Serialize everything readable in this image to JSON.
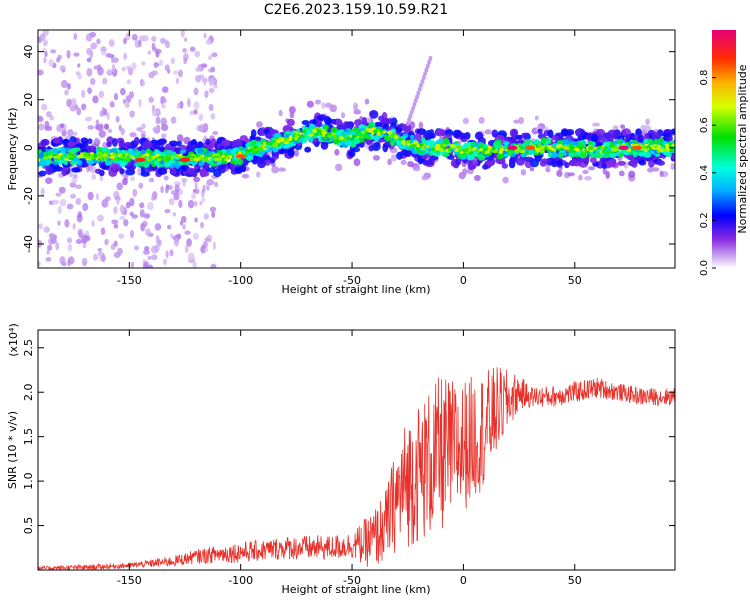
{
  "title": "C2E6.2023.159.10.59.R21",
  "chart_data": [
    {
      "type": "heatmap",
      "title": "C2E6.2023.159.10.59.R21",
      "xlabel": "Height of straight line (km)",
      "ylabel": "Frequency (Hz)",
      "xlim": [
        -191,
        95
      ],
      "ylim": [
        -50,
        49
      ],
      "xticks": [
        -150,
        -100,
        -50,
        0,
        50
      ],
      "yticks": [
        -40,
        -20,
        0,
        20,
        40
      ],
      "ridge": {
        "x": [
          -191,
          -180,
          -170,
          -160,
          -150,
          -140,
          -130,
          -120,
          -110,
          -100,
          -95,
          -90,
          -85,
          -80,
          -75,
          -70,
          -65,
          -60,
          -55,
          -50,
          -45,
          -40,
          -35,
          -30,
          -25,
          -20,
          -15,
          -10,
          -5,
          0,
          5,
          10,
          20,
          30,
          40,
          50,
          60,
          70,
          80,
          95
        ],
        "y": [
          -4,
          -3.5,
          -3.5,
          -3.5,
          -4,
          -4,
          -4.5,
          -4,
          -4,
          -3,
          -1,
          0,
          2,
          3,
          5,
          6,
          7,
          5,
          4,
          4,
          6,
          7,
          6,
          4,
          2,
          1,
          0,
          0,
          0,
          -1,
          -1.5,
          -1,
          -0.5,
          0,
          0,
          -0.5,
          -1,
          0,
          0,
          0
        ]
      },
      "peaks": [
        {
          "x": -145,
          "y": -5,
          "level": 0.9
        },
        {
          "x": -125,
          "y": -5,
          "level": 0.9
        },
        {
          "x": -100,
          "y": -3.5,
          "level": 0.85
        },
        {
          "x": 22,
          "y": 0,
          "level": 1.0
        },
        {
          "x": 30,
          "y": 0,
          "level": 0.85
        },
        {
          "x": 72,
          "y": 0,
          "level": 1.0
        },
        {
          "x": 78,
          "y": 0,
          "level": 0.85
        }
      ]
    },
    {
      "type": "line",
      "xlabel": "Height of straight line (km)",
      "ylabel": "SNR (10 * v/v)",
      "scale_label": "(x10⁴)",
      "xlim": [
        -191,
        95
      ],
      "ylim": [
        0,
        2.7
      ],
      "xticks": [
        -150,
        -100,
        -50,
        0,
        50
      ],
      "yticks": [
        0.5,
        1.0,
        1.5,
        2.0,
        2.5
      ],
      "ytick_labels": [
        "0.5",
        "1.0",
        "1.5",
        "2.0",
        "2.5"
      ],
      "series": [
        {
          "color": "#e8312a",
          "x": [
            -191,
            -170,
            -150,
            -130,
            -120,
            -110,
            -100,
            -90,
            -80,
            -70,
            -60,
            -50,
            -45,
            -40,
            -35,
            -30,
            -25,
            -20,
            -15,
            -10,
            -5,
            0,
            5,
            10,
            15,
            20,
            25,
            30,
            40,
            50,
            60,
            70,
            80,
            95
          ],
          "y": [
            0.02,
            0.03,
            0.05,
            0.1,
            0.15,
            0.18,
            0.2,
            0.22,
            0.25,
            0.25,
            0.25,
            0.28,
            0.3,
            0.35,
            0.5,
            0.8,
            1.0,
            1.1,
            1.2,
            1.3,
            1.35,
            1.4,
            1.5,
            1.6,
            1.8,
            1.9,
            2.0,
            1.95,
            1.95,
            2.0,
            2.05,
            2.0,
            1.95,
            1.95
          ],
          "noise": [
            0.02,
            0.03,
            0.03,
            0.06,
            0.08,
            0.1,
            0.12,
            0.12,
            0.13,
            0.14,
            0.14,
            0.15,
            0.25,
            0.35,
            0.4,
            0.6,
            0.75,
            0.8,
            0.85,
            0.9,
            0.8,
            0.75,
            0.7,
            0.65,
            0.5,
            0.35,
            0.2,
            0.12,
            0.12,
            0.12,
            0.12,
            0.1,
            0.1,
            0.1
          ]
        }
      ]
    }
  ],
  "colorbar": {
    "label": "Normalized spectral amplitude",
    "ticks": [
      0.0,
      0.2,
      0.4,
      0.6,
      0.8
    ],
    "tick_labels": [
      "0.0",
      "0.2",
      "0.4",
      "0.6",
      "0.8"
    ],
    "range": [
      0,
      1
    ]
  }
}
